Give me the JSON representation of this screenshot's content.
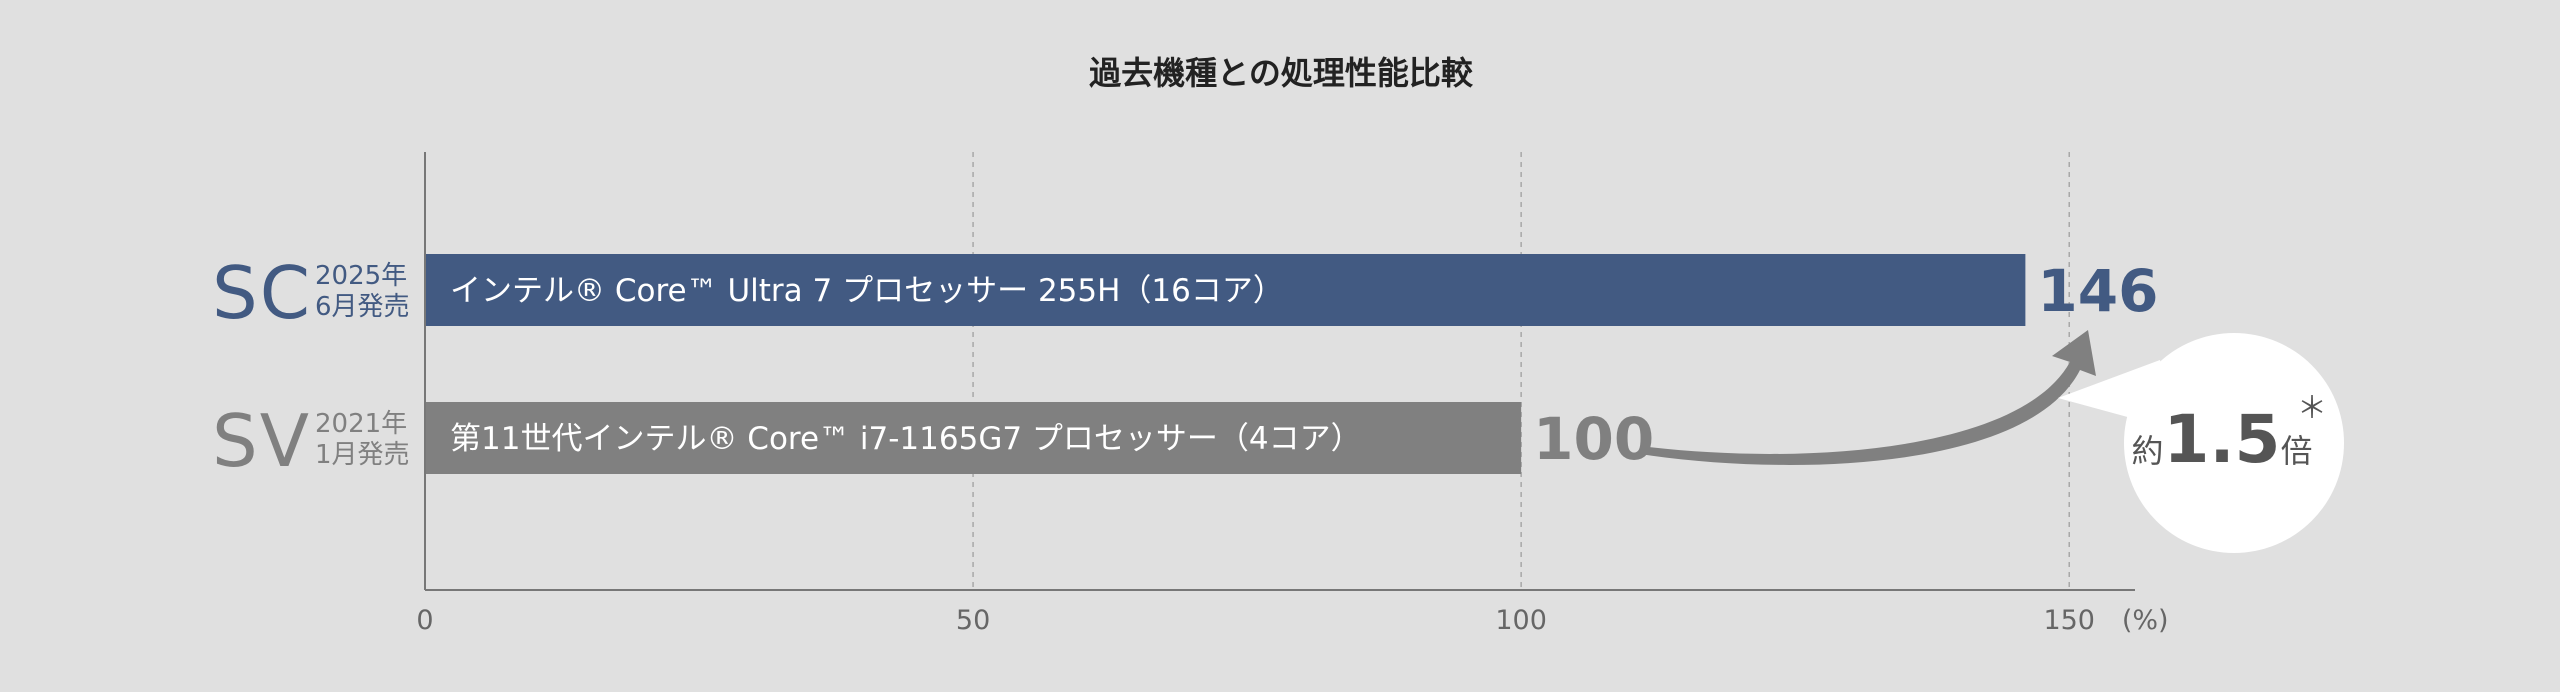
{
  "chart_data": {
    "type": "bar",
    "orientation": "horizontal",
    "title": "過去機種との処理性能比較",
    "xlabel": "",
    "ylabel": "",
    "xlim": [
      0,
      156
    ],
    "x_ticks": [
      0,
      50,
      100,
      150
    ],
    "x_tick_labels": [
      "0",
      "50",
      "100",
      "150"
    ],
    "x_unit": "(%)",
    "grid": "vertical-dashed",
    "categories": [
      {
        "code": "SC",
        "date_line1": "2025年",
        "date_line2": "6月発売"
      },
      {
        "code": "SV",
        "date_line1": "2021年",
        "date_line2": "1月発売"
      }
    ],
    "values": [
      146,
      100
    ],
    "value_labels": [
      "146",
      "100"
    ],
    "bar_labels": [
      "インテル® Core™ Ultra 7 プロセッサー 255H（16コア）",
      "第11世代インテル® Core™ i7-1165G7 プロセッサー（4コア）"
    ],
    "colors": [
      "#425a82",
      "#808080"
    ],
    "annotation": {
      "prefix": "約",
      "value": "1.5",
      "suffix": "倍",
      "mark": "＊"
    }
  }
}
